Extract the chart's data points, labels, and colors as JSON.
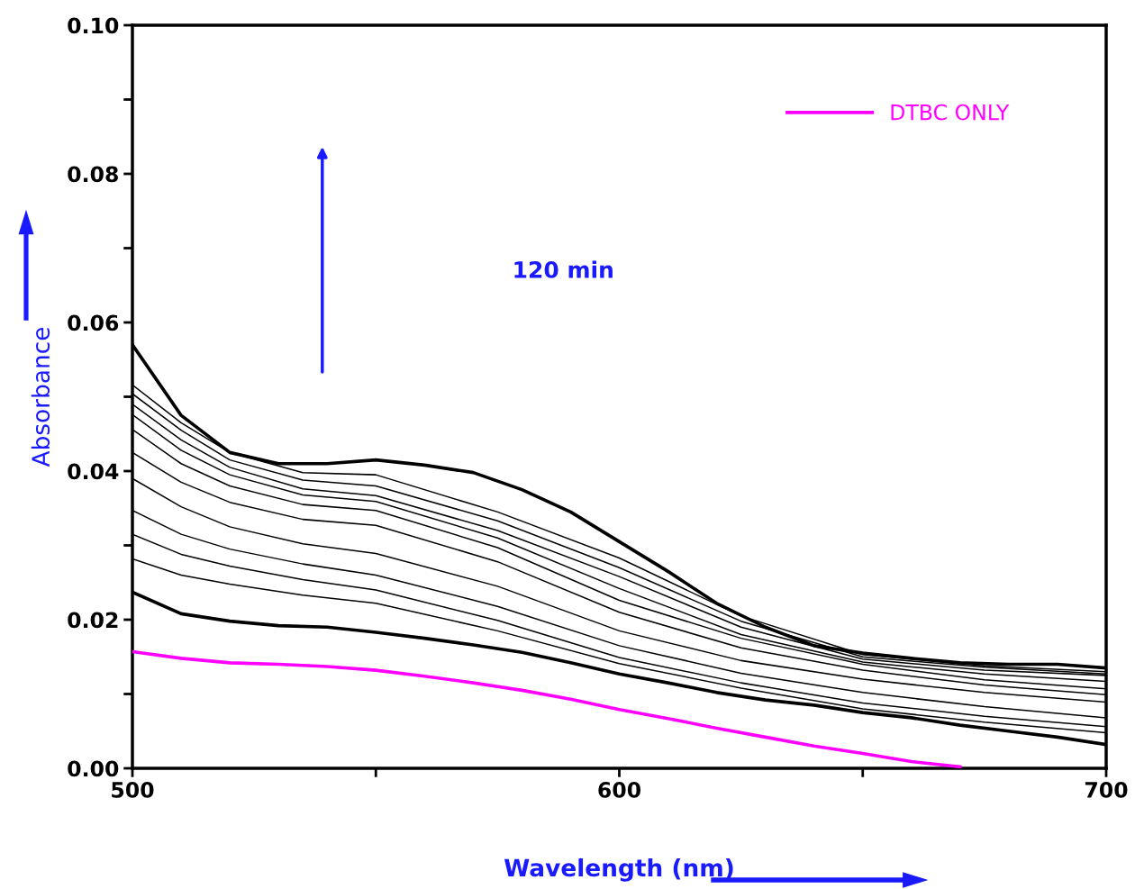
{
  "chart_data": {
    "type": "line",
    "xlabel": "Wavelength (nm)",
    "ylabel": "Absorbance",
    "annotations": [
      "120 min"
    ],
    "xlim": [
      500,
      700
    ],
    "xticks": [
      500,
      {
        "value": 550,
        "label": null
      },
      600,
      {
        "value": 650,
        "label": null
      },
      700
    ],
    "ylim": [
      0,
      0.1
    ],
    "yticks": [
      {
        "value": 0,
        "label": "0.00"
      },
      {
        "value": 0.01,
        "label": null
      },
      {
        "value": 0.02,
        "label": "0.02"
      },
      {
        "value": 0.03,
        "label": null
      },
      {
        "value": 0.04,
        "label": "0.04"
      },
      {
        "value": 0.05,
        "label": null
      },
      {
        "value": 0.06,
        "label": "0.06"
      },
      {
        "value": 0.07,
        "label": null
      },
      {
        "value": 0.08,
        "label": "0.08"
      },
      {
        "value": 0.09,
        "label": null
      },
      {
        "value": 0.1,
        "label": "0.10"
      }
    ],
    "grid": false,
    "legend": "top right",
    "marker": "none",
    "line_style": "solid",
    "series": [
      {
        "name": "DTBC ONLY",
        "color": "#ff00ff",
        "x": [
          500,
          510,
          520,
          530,
          540,
          550,
          560,
          570,
          580,
          590,
          600,
          610,
          620,
          630,
          640,
          650,
          660,
          670
        ],
        "values": [
          0.0157,
          0.0148,
          0.0142,
          0.014,
          0.0137,
          0.0132,
          0.0124,
          0.0115,
          0.0105,
          0.0093,
          0.0079,
          0.0067,
          0.0054,
          0.0042,
          0.003,
          0.002,
          0.0009,
          0.0002
        ]
      },
      {
        "color": "#000000",
        "x": [
          500,
          510,
          520,
          530,
          540,
          550,
          560,
          570,
          580,
          590,
          600,
          610,
          620,
          630,
          640,
          650,
          660,
          670,
          680,
          690,
          700
        ],
        "values": [
          0.0237,
          0.0208,
          0.0198,
          0.0192,
          0.019,
          0.0183,
          0.0175,
          0.0166,
          0.0156,
          0.0142,
          0.0127,
          0.0115,
          0.0102,
          0.0092,
          0.0085,
          0.0075,
          0.0068,
          0.0058,
          0.005,
          0.0042,
          0.0032
        ]
      },
      {
        "color": "#000000",
        "x": [
          500,
          510,
          520,
          535,
          550,
          575,
          600,
          625,
          650,
          675,
          700
        ],
        "values": [
          0.0282,
          0.026,
          0.0248,
          0.0233,
          0.0222,
          0.0185,
          0.0141,
          0.0108,
          0.008,
          0.0062,
          0.0048
        ]
      },
      {
        "color": "#000000",
        "x": [
          500,
          510,
          520,
          535,
          550,
          575,
          600,
          625,
          650,
          675,
          700
        ],
        "values": [
          0.0315,
          0.0288,
          0.0272,
          0.0254,
          0.024,
          0.0199,
          0.0149,
          0.0115,
          0.0088,
          0.007,
          0.0056
        ]
      },
      {
        "color": "#000000",
        "x": [
          500,
          510,
          520,
          535,
          550,
          575,
          600,
          625,
          650,
          675,
          700
        ],
        "values": [
          0.0347,
          0.0315,
          0.0295,
          0.0275,
          0.026,
          0.0218,
          0.0165,
          0.0128,
          0.0102,
          0.0083,
          0.0068
        ]
      },
      {
        "color": "#000000",
        "x": [
          500,
          510,
          520,
          535,
          550,
          575,
          600,
          625,
          650,
          675,
          700
        ],
        "values": [
          0.039,
          0.0352,
          0.0325,
          0.0302,
          0.0289,
          0.0245,
          0.0185,
          0.0145,
          0.012,
          0.0102,
          0.0089
        ]
      },
      {
        "color": "#000000",
        "x": [
          500,
          510,
          520,
          535,
          550,
          575,
          600,
          625,
          650,
          675,
          700
        ],
        "values": [
          0.0425,
          0.0385,
          0.0358,
          0.0335,
          0.0327,
          0.0278,
          0.021,
          0.0162,
          0.0132,
          0.0112,
          0.0099
        ]
      },
      {
        "color": "#000000",
        "x": [
          500,
          510,
          520,
          535,
          550,
          575,
          600,
          625,
          650,
          675,
          700
        ],
        "values": [
          0.0456,
          0.041,
          0.038,
          0.0355,
          0.0347,
          0.0297,
          0.0226,
          0.0175,
          0.014,
          0.0119,
          0.0107
        ]
      },
      {
        "color": "#000000",
        "x": [
          500,
          510,
          520,
          535,
          550,
          575,
          600,
          625,
          650,
          675,
          700
        ],
        "values": [
          0.0476,
          0.0428,
          0.0395,
          0.0368,
          0.0359,
          0.031,
          0.0242,
          0.018,
          0.0143,
          0.0127,
          0.0117
        ]
      },
      {
        "color": "#000000",
        "x": [
          500,
          510,
          520,
          535,
          550,
          575,
          600,
          625,
          650,
          675,
          700
        ],
        "values": [
          0.049,
          0.0442,
          0.0405,
          0.0376,
          0.0367,
          0.032,
          0.0258,
          0.019,
          0.0147,
          0.0132,
          0.0125
        ]
      },
      {
        "color": "#000000",
        "x": [
          500,
          510,
          520,
          535,
          550,
          575,
          600,
          625,
          650,
          675,
          700
        ],
        "values": [
          0.0504,
          0.0455,
          0.0415,
          0.0388,
          0.038,
          0.0333,
          0.027,
          0.0198,
          0.015,
          0.0136,
          0.0127
        ]
      },
      {
        "color": "#000000",
        "x": [
          500,
          510,
          520,
          535,
          550,
          575,
          600,
          625,
          650,
          675,
          700
        ],
        "values": [
          0.0516,
          0.0465,
          0.0425,
          0.0398,
          0.0395,
          0.0345,
          0.0283,
          0.0205,
          0.0153,
          0.0138,
          0.013
        ]
      },
      {
        "color": "#000000",
        "x": [
          500,
          510,
          520,
          530,
          540,
          550,
          560,
          570,
          580,
          590,
          600,
          610,
          620,
          630,
          640,
          650,
          660,
          670,
          680,
          690,
          700
        ],
        "values": [
          0.057,
          0.0475,
          0.0425,
          0.041,
          0.041,
          0.0415,
          0.0408,
          0.0398,
          0.0375,
          0.0345,
          0.0305,
          0.0265,
          0.0222,
          0.019,
          0.0165,
          0.0155,
          0.0148,
          0.0142,
          0.014,
          0.014,
          0.0135
        ]
      }
    ]
  }
}
